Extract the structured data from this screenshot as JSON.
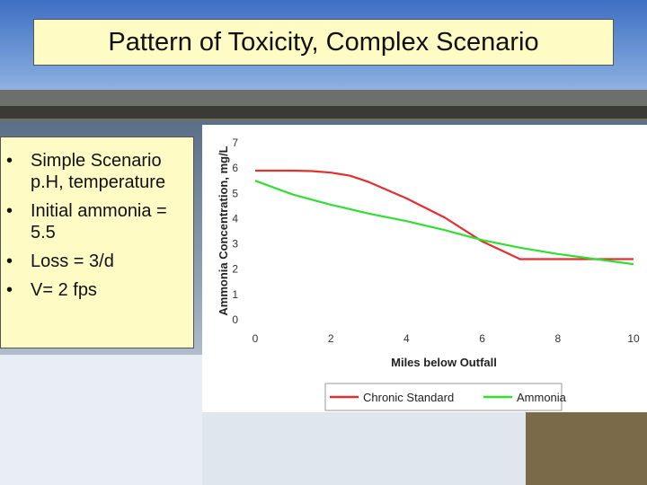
{
  "slide": {
    "title": "Pattern of Toxicity, Complex Scenario",
    "bullets": [
      {
        "text": "Simple Scenario p.H, temperature"
      },
      {
        "text": "Initial ammonia = 5.5"
      },
      {
        "text": "Loss = 3/d"
      },
      {
        "text": "V= 2 fps"
      }
    ],
    "bullet_glyph": "•"
  },
  "chart_data": {
    "type": "line",
    "xlabel": "Miles below Outfall",
    "ylabel": "Ammonia Concentration, mg/L",
    "xlim": [
      0,
      10
    ],
    "ylim": [
      0,
      7
    ],
    "x_ticks": [
      0,
      2,
      4,
      6,
      8,
      10
    ],
    "y_ticks": [
      0,
      1,
      2,
      3,
      4,
      5,
      6,
      7
    ],
    "grid": false,
    "legend_position": "bottom",
    "series": [
      {
        "name": "Chronic Standard",
        "color": "#e03030",
        "x": [
          0,
          1,
          1.5,
          2,
          2.5,
          3,
          4,
          5,
          6,
          7,
          8,
          9,
          10
        ],
        "y": [
          5.9,
          5.9,
          5.88,
          5.82,
          5.7,
          5.45,
          4.8,
          4.05,
          3.1,
          2.4,
          2.4,
          2.4,
          2.4
        ]
      },
      {
        "name": "Ammonia",
        "color": "#33dd33",
        "x": [
          0,
          1,
          2,
          3,
          4,
          5,
          6,
          7,
          8,
          9,
          10
        ],
        "y": [
          5.5,
          4.95,
          4.55,
          4.2,
          3.9,
          3.55,
          3.15,
          2.85,
          2.6,
          2.4,
          2.2
        ]
      }
    ]
  }
}
